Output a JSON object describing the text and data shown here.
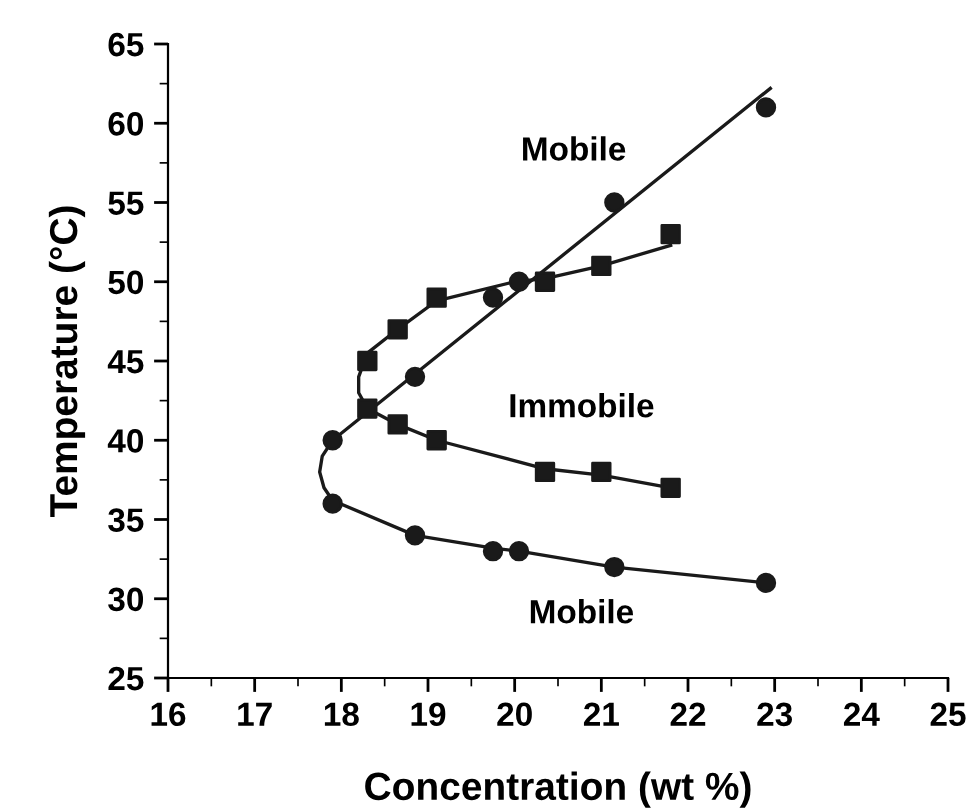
{
  "chart_data": {
    "type": "scatter",
    "xlabel": "Concentration (wt %)",
    "ylabel": "Temperature (°C)",
    "xlim": [
      16,
      25
    ],
    "xticks": [
      16,
      17,
      18,
      19,
      20,
      21,
      22,
      23,
      24,
      25
    ],
    "ylim": [
      25,
      65
    ],
    "yticks": [
      25,
      30,
      35,
      40,
      45,
      50,
      55,
      60,
      65
    ],
    "grid": false,
    "legend": false,
    "series": [
      {
        "marker": "circle",
        "color": "#1a1a1a",
        "x": [
          22.9,
          21.15,
          20.05,
          19.75,
          18.85,
          17.9,
          17.9,
          18.85,
          19.75,
          20.05,
          21.15,
          22.9
        ],
        "values": [
          61,
          55,
          50,
          49,
          44,
          40,
          36,
          34,
          33,
          33,
          32,
          31
        ]
      },
      {
        "marker": "square",
        "color": "#1a1a1a",
        "x": [
          18.3,
          18.65,
          19.1,
          20.35,
          21.0,
          21.8,
          18.3,
          18.65,
          19.1,
          20.35,
          21.0,
          21.8
        ],
        "values": [
          45,
          47,
          49,
          50,
          51,
          53,
          42,
          41,
          40,
          38,
          38,
          37
        ]
      },
      {
        "type": "line",
        "color": "#1a1a1a",
        "x": [
          17.9,
          22.95
        ],
        "values": [
          40,
          62.2
        ]
      },
      {
        "type": "line",
        "color": "#1a1a1a",
        "x": [
          17.9,
          17.78,
          17.75,
          17.8,
          17.9,
          18.85,
          19.75,
          20.05,
          21.15,
          22.9
        ],
        "values": [
          40,
          39,
          38,
          37,
          36.2,
          34,
          33.2,
          33,
          32,
          31
        ]
      },
      {
        "type": "line",
        "color": "#1a1a1a",
        "x": [
          21.8,
          21.0,
          20.35,
          20.0,
          19.1,
          18.65,
          18.3,
          18.2,
          18.2,
          18.3,
          18.65,
          19.1,
          20.35,
          21.0,
          21.8
        ],
        "values": [
          52.3,
          51,
          50.2,
          50,
          48.8,
          47,
          45.5,
          44,
          43,
          42,
          41,
          40,
          38.2,
          37.8,
          37
        ]
      }
    ],
    "annotations": [
      "Mobile",
      "Immobile",
      "Mobile"
    ]
  }
}
